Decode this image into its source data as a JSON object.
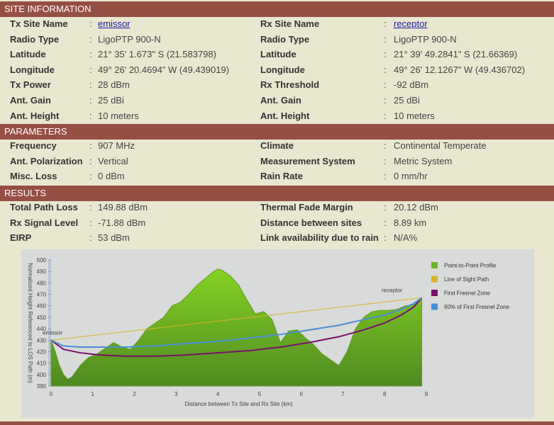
{
  "site_info": {
    "header": "SITE INFORMATION",
    "left": [
      {
        "label": "Tx Site Name",
        "value": "emissor"
      },
      {
        "label": "Radio Type",
        "value": "LigoPTP 900-N"
      },
      {
        "label": "Latitude",
        "value": "21° 35' 1.673\" S (21.583798)"
      },
      {
        "label": "Longitude",
        "value": "49° 26' 20.4694\" W (49.439019)"
      },
      {
        "label": "Tx Power",
        "value": "28 dBm"
      },
      {
        "label": "Ant. Gain",
        "value": "25 dBi"
      },
      {
        "label": "Ant. Height",
        "value": "10 meters"
      }
    ],
    "right": [
      {
        "label": "Rx Site Name",
        "value": "receptor"
      },
      {
        "label": "Radio Type",
        "value": "LigoPTP 900-N"
      },
      {
        "label": "Latitude",
        "value": "21° 39' 49.2841\" S (21.66369)"
      },
      {
        "label": "Longitude",
        "value": "49° 26' 12.1267\" W (49.436702)"
      },
      {
        "label": "Rx Threshold",
        "value": "-92 dBm"
      },
      {
        "label": "Ant. Gain",
        "value": "25 dBi"
      },
      {
        "label": "Ant. Height",
        "value": "10 meters"
      }
    ]
  },
  "parameters": {
    "header": "PARAMETERS",
    "left": [
      {
        "label": "Frequency",
        "value": "907 MHz"
      },
      {
        "label": "Ant. Polarization",
        "value": "Vertical"
      },
      {
        "label": "Misc. Loss",
        "value": "0 dBm"
      }
    ],
    "right": [
      {
        "label": "Climate",
        "value": "Continental Temperate"
      },
      {
        "label": "Measurement System",
        "value": "Metric System"
      },
      {
        "label": "Rain Rate",
        "value": "0 mm/hr"
      }
    ]
  },
  "results": {
    "header": "RESULTS",
    "left": [
      {
        "label": "Total Path Loss",
        "value": "149.88 dBm"
      },
      {
        "label": "Rx Signal Level",
        "value": "-71.88 dBm"
      },
      {
        "label": "EIRP",
        "value": "53 dBm"
      }
    ],
    "right": [
      {
        "label": "Thermal Fade Margin",
        "value": "20.12 dBm"
      },
      {
        "label": "Distance between sites",
        "value": "8.89 km"
      },
      {
        "label": "Link availability due to rain",
        "value": "N/A%"
      }
    ]
  },
  "colon": ":",
  "chart_data": {
    "type": "area",
    "xlabel": "Distance between Tx Site and Rx Site (km)",
    "ylabel": "Normalized Height Referenced to LOS Path (m)",
    "xlim": [
      0,
      9
    ],
    "ylim": [
      390,
      500
    ],
    "x_ticks": [
      "0",
      "1",
      "2",
      "3",
      "4",
      "5",
      "6",
      "7",
      "8",
      "9"
    ],
    "y_ticks": [
      "390",
      "400",
      "410",
      "420",
      "430",
      "440",
      "450",
      "460",
      "470",
      "480",
      "490",
      "500"
    ],
    "annotations": {
      "start": "emissor",
      "end": "receptor"
    },
    "legend_position": "right",
    "colors": {
      "profile": "#6fb52a",
      "los": "#d9b42a",
      "fresnel": "#7a0f6a",
      "fresnel60": "#4a8fd6"
    },
    "series": [
      {
        "name": "Point-to-Point Profile",
        "x": [
          0,
          0.1,
          0.2,
          0.3,
          0.4,
          0.5,
          0.7,
          0.9,
          1.1,
          1.3,
          1.5,
          1.7,
          1.9,
          2.1,
          2.3,
          2.5,
          2.7,
          2.9,
          3.1,
          3.3,
          3.5,
          3.7,
          3.9,
          4.0,
          4.1,
          4.3,
          4.5,
          4.7,
          4.9,
          5.1,
          5.3,
          5.5,
          5.7,
          5.9,
          6.1,
          6.3,
          6.5,
          6.7,
          6.9,
          7.1,
          7.3,
          7.5,
          7.7,
          7.9,
          8.1,
          8.3,
          8.5,
          8.7,
          8.89
        ],
        "y": [
          430,
          420,
          408,
          400,
          396,
          398,
          408,
          415,
          418,
          423,
          428,
          424,
          422,
          430,
          440,
          445,
          450,
          460,
          463,
          470,
          478,
          484,
          490,
          492,
          491,
          486,
          478,
          465,
          453,
          455,
          448,
          428,
          438,
          439,
          432,
          426,
          418,
          413,
          408,
          420,
          440,
          450,
          455,
          456,
          456,
          457,
          460,
          461,
          467
        ]
      },
      {
        "name": "Line of Sight Path",
        "x": [
          0,
          8.89
        ],
        "y": [
          430,
          467
        ]
      },
      {
        "name": "First Fresnel Zone",
        "x": [
          0,
          0.3,
          0.7,
          1.2,
          1.8,
          2.5,
          3.2,
          4.0,
          4.8,
          5.5,
          6.2,
          6.9,
          7.5,
          8.0,
          8.4,
          8.7,
          8.89
        ],
        "y": [
          430,
          422,
          419,
          417,
          416,
          416,
          417,
          419,
          421,
          424,
          428,
          433,
          439,
          445,
          452,
          459,
          467
        ]
      },
      {
        "name": "60% of First Fresnel Zone",
        "x": [
          0,
          0.3,
          0.7,
          1.2,
          1.8,
          2.5,
          3.2,
          4.0,
          4.8,
          5.5,
          6.2,
          6.9,
          7.5,
          8.0,
          8.4,
          8.7,
          8.89
        ],
        "y": [
          430,
          425,
          424,
          424,
          424,
          425,
          427,
          429,
          432,
          435,
          439,
          443,
          448,
          452,
          457,
          462,
          467
        ]
      }
    ]
  }
}
